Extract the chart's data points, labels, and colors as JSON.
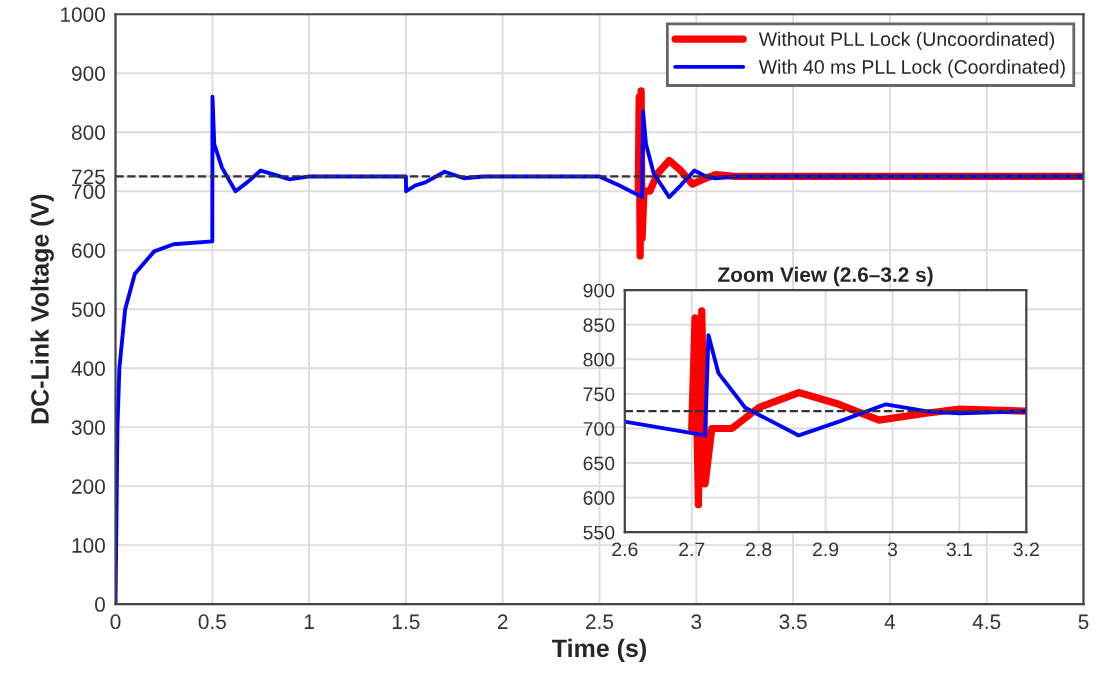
{
  "chart_data": [
    {
      "type": "line",
      "xlabel": "Time (s)",
      "ylabel": "DC-Link Voltage (V)",
      "xlim": [
        0,
        5
      ],
      "ylim": [
        0,
        1000
      ],
      "xticks": [
        0,
        0.5,
        1,
        1.5,
        2,
        2.5,
        3,
        3.5,
        4,
        4.5,
        5
      ],
      "yticks": [
        0,
        100,
        200,
        300,
        400,
        500,
        600,
        700,
        725,
        800,
        900,
        1000
      ],
      "grid": true,
      "legend": "top right",
      "line_style": "solid",
      "ref_lines": [
        {
          "axis": "y",
          "value": 725,
          "color": "#333333",
          "line_style": "dashed"
        }
      ],
      "series": [
        {
          "name": "Without PLL Lock (Uncoordinated)",
          "color": "#ff0000",
          "x": [
            2.7,
            2.705,
            2.71,
            2.715,
            2.72,
            2.73,
            2.76,
            2.8,
            2.86,
            2.92,
            2.98,
            3.05,
            3.1,
            3.2,
            5
          ],
          "values": [
            700,
            860,
            590,
            870,
            620,
            700,
            700,
            730,
            752,
            735,
            712,
            722,
            728,
            725,
            725
          ]
        },
        {
          "name": "With 40 ms PLL Lock (Coordinated)",
          "color": "#0000ff",
          "x": [
            0,
            0.01,
            0.02,
            0.05,
            0.1,
            0.2,
            0.3,
            0.5,
            0.501,
            0.51,
            0.55,
            0.62,
            0.68,
            0.75,
            0.82,
            0.9,
            1.0,
            1.5,
            1.501,
            1.55,
            1.6,
            1.7,
            1.8,
            1.9,
            2.5,
            2.6,
            2.72,
            2.725,
            2.74,
            2.78,
            2.86,
            2.92,
            2.99,
            3.05,
            3.1,
            3.2,
            5
          ],
          "values": [
            0,
            300,
            400,
            500,
            560,
            598,
            610,
            615,
            860,
            780,
            740,
            700,
            715,
            735,
            728,
            720,
            725,
            725,
            700,
            710,
            715,
            733,
            722,
            725,
            725,
            710,
            690,
            835,
            780,
            730,
            690,
            710,
            735,
            725,
            722,
            725,
            725
          ]
        }
      ]
    },
    {
      "type": "line",
      "title": "Zoom View (2.6–3.2 s)",
      "xlim": [
        2.6,
        3.2
      ],
      "ylim": [
        550,
        900
      ],
      "xticks": [
        2.6,
        2.7,
        2.8,
        2.9,
        3,
        3.1,
        3.2
      ],
      "yticks": [
        550,
        600,
        650,
        700,
        750,
        800,
        850,
        900
      ],
      "grid": true,
      "line_style": "solid",
      "ref_lines": [
        {
          "axis": "y",
          "value": 725,
          "color": "#333333",
          "line_style": "dashed"
        }
      ],
      "series": [
        {
          "color": "#ff0000",
          "x": [
            2.7,
            2.705,
            2.71,
            2.715,
            2.72,
            2.73,
            2.76,
            2.8,
            2.86,
            2.92,
            2.98,
            3.05,
            3.1,
            3.2
          ],
          "values": [
            700,
            860,
            590,
            870,
            620,
            700,
            700,
            730,
            752,
            735,
            712,
            722,
            728,
            725
          ]
        },
        {
          "color": "#0000ff",
          "x": [
            2.6,
            2.72,
            2.725,
            2.74,
            2.78,
            2.86,
            2.92,
            2.99,
            3.05,
            3.1,
            3.2
          ],
          "values": [
            710,
            690,
            835,
            780,
            730,
            690,
            710,
            735,
            725,
            722,
            725
          ]
        }
      ]
    }
  ]
}
